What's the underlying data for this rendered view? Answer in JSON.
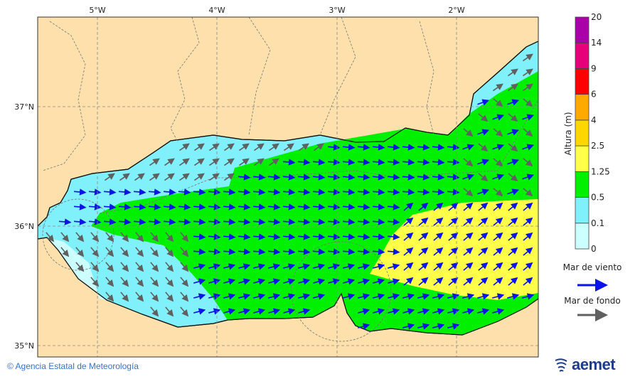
{
  "map": {
    "lon_labels": [
      "5°W",
      "4°W",
      "3°W",
      "2°W"
    ],
    "lat_labels": [
      "37°N",
      "36°N",
      "35°N"
    ],
    "colors": {
      "land": "#fde0ac",
      "sea_0": "#ccffff",
      "sea_01": "#80f0fa",
      "sea_05": "#00f000",
      "sea_125": "#ffff4a",
      "wind_arrow": "#0a14e6",
      "swell_arrow": "#606060"
    }
  },
  "legend": {
    "title": "Altura (m)",
    "levels": [
      "0",
      "0.1",
      "0.5",
      "1.25",
      "2.5",
      "4",
      "6",
      "9",
      "14",
      "20"
    ],
    "colors": [
      "#ccffff",
      "#80f0fa",
      "#00f000",
      "#ffff4a",
      "#ffd700",
      "#ffaa00",
      "#ff0000",
      "#e6007a",
      "#aa00aa"
    ],
    "wind_sea_label": "Mar de viento",
    "swell_label": "Mar de fondo"
  },
  "footer": {
    "copyright": "© Agencia Estatal de Meteorología"
  },
  "logo": {
    "text": "aemet"
  }
}
